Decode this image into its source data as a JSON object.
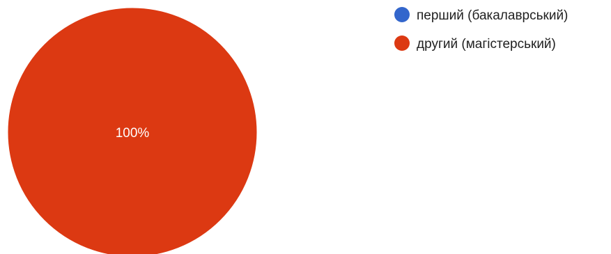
{
  "chart_data": {
    "type": "pie",
    "legend_position": "top-right",
    "slices": [
      {
        "label": "перший (бакалаврський)",
        "value": 0,
        "color": "#3366cc"
      },
      {
        "label": "другий (магістерський)",
        "value": 100,
        "color": "#dc3912"
      }
    ],
    "data_labels": [
      "",
      "100%"
    ],
    "data_label_color": "#ffffff"
  }
}
